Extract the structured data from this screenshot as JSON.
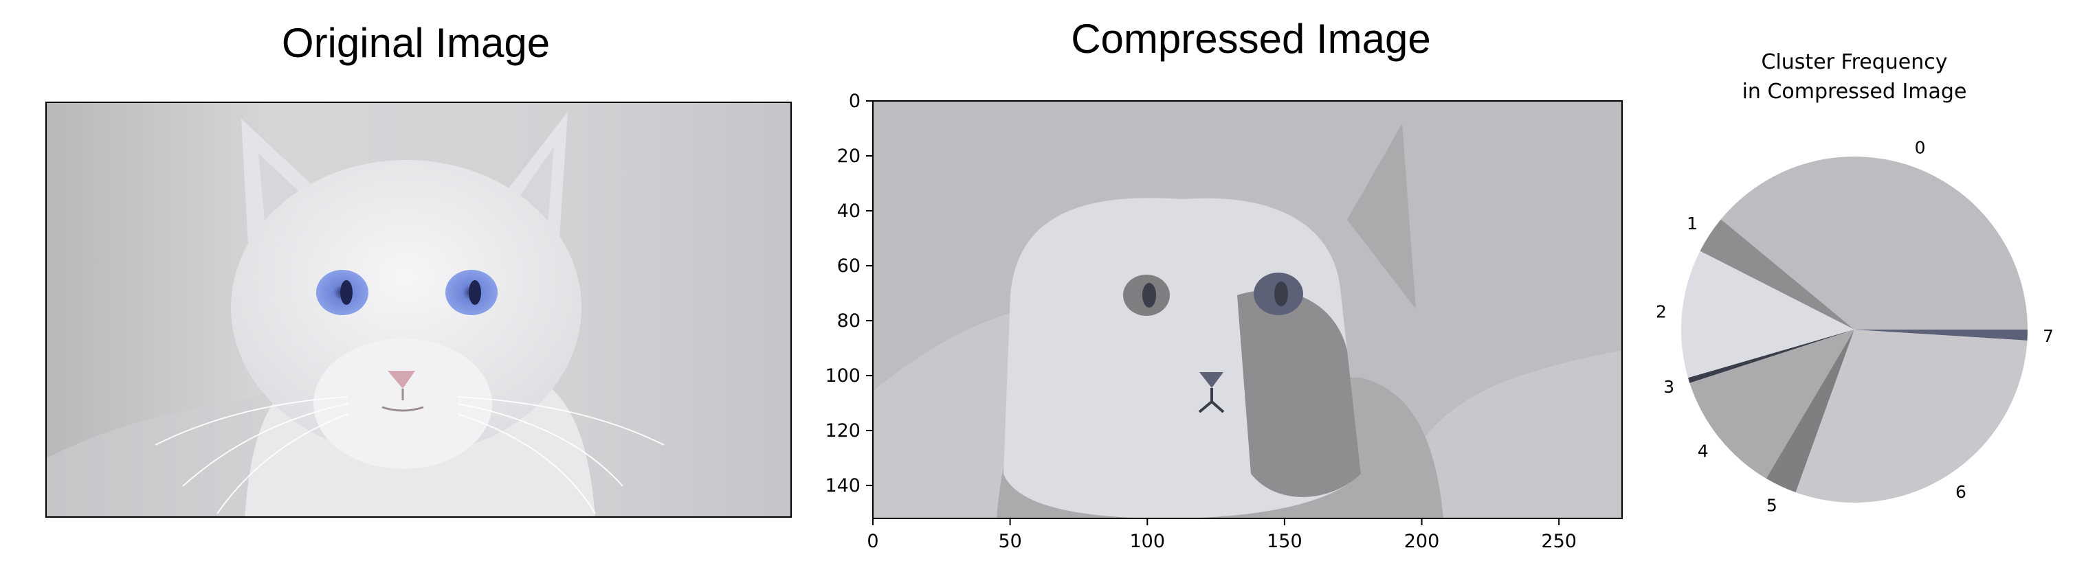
{
  "panels": {
    "original": {
      "title": "Original Image"
    },
    "compressed": {
      "title": "Compressed Image"
    }
  },
  "chart_data": [
    {
      "type": "image",
      "title": "Compressed Image",
      "xticks": [
        0,
        50,
        100,
        150,
        200,
        250
      ],
      "yticks": [
        0,
        20,
        40,
        60,
        80,
        100,
        120,
        140
      ],
      "xlim": [
        0,
        273
      ],
      "ylim": [
        152,
        0
      ],
      "palette": [
        "#bdbdc1",
        "#8e8e91",
        "#dcdde2",
        "#3a3d4a",
        "#ababae",
        "#7f7f81",
        "#c8c8cc",
        "#5d6178"
      ]
    },
    {
      "type": "pie",
      "title_lines": [
        "Cluster Frequency",
        "in Compressed Image"
      ],
      "labels": [
        "0",
        "1",
        "2",
        "3",
        "4",
        "5",
        "6",
        "7"
      ],
      "values": [
        39.0,
        3.5,
        12.0,
        0.5,
        11.5,
        3.0,
        29.5,
        1.0
      ],
      "colors": [
        "#bdbdc1",
        "#8e8e91",
        "#dcdde2",
        "#3a3d4a",
        "#ababae",
        "#7f7f81",
        "#c8c8cc",
        "#5d6178"
      ]
    }
  ]
}
